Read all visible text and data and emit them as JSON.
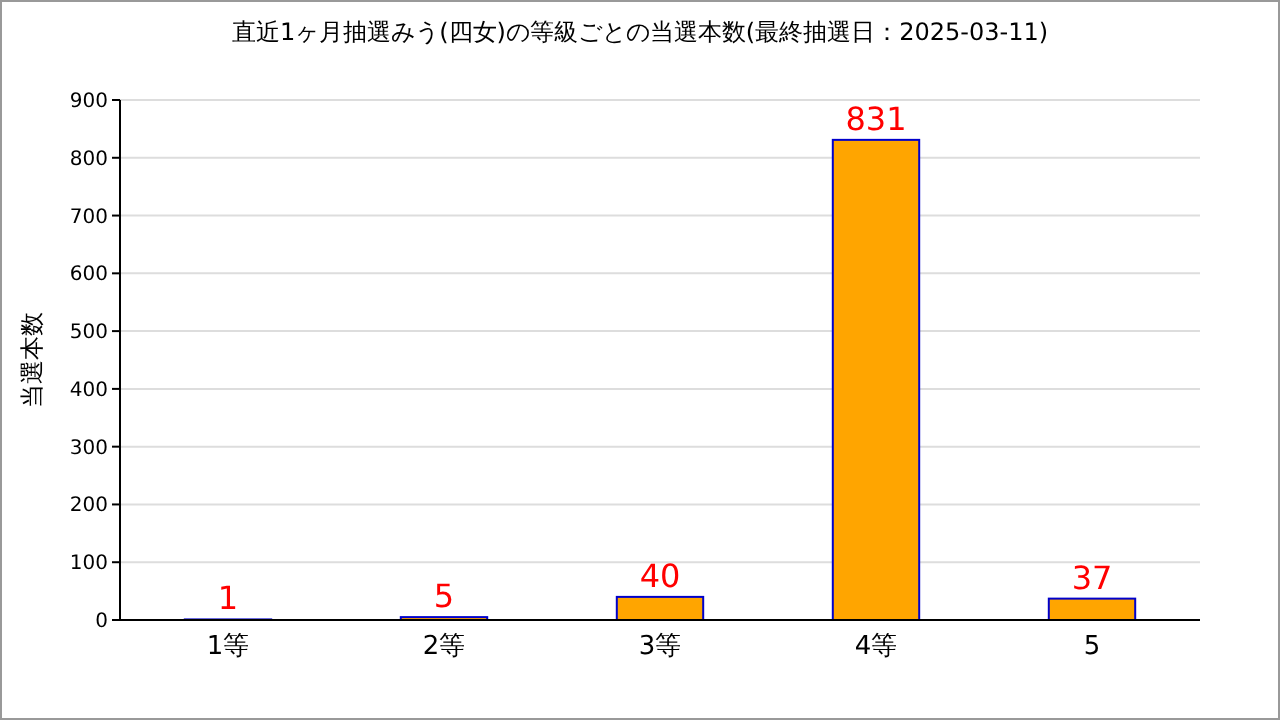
{
  "chart_data": {
    "type": "bar",
    "title": "直近1ヶ月抽選みう(四女)の等級ごとの当選本数(最終抽選日：2025-03-11)",
    "ylabel": "当選本数",
    "categories": [
      "1等",
      "2等",
      "3等",
      "4等",
      "5"
    ],
    "values": [
      1,
      5,
      40,
      831,
      37
    ],
    "color": "#ffa500",
    "ylim": [
      0,
      900
    ],
    "yticks": [
      0,
      100,
      200,
      300,
      400,
      500,
      600,
      700,
      800,
      900
    ],
    "grid": "y",
    "data_labels": true
  }
}
